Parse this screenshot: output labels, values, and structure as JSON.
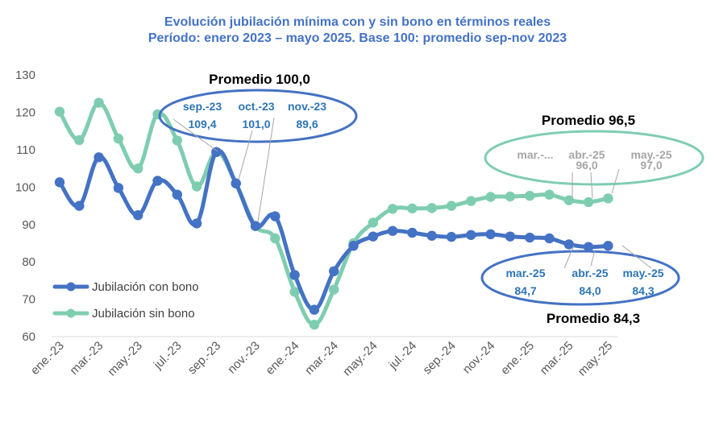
{
  "chart_data": {
    "type": "line",
    "title": "Evolución jubilación mínima con y sin bono en términos reales",
    "subtitle": "Período: enero 2023 – mayo 2025. Base 100: promedio sep-nov 2023",
    "x_tick_labels": [
      "ene.-23",
      "mar.-23",
      "may.-23",
      "jul.-23",
      "sep.-23",
      "nov.-23",
      "ene.-24",
      "mar.-24",
      "may.-24",
      "jul.-24",
      "sep.-24",
      "nov.-24",
      "ene.-25",
      "mar.-25",
      "may.-25"
    ],
    "months": [
      "ene.-23",
      "feb.-23",
      "mar.-23",
      "abr.-23",
      "may.-23",
      "jun.-23",
      "jul.-23",
      "ago.-23",
      "sep.-23",
      "oct.-23",
      "nov.-23",
      "dic.-23",
      "ene.-24",
      "feb.-24",
      "mar.-24",
      "abr.-24",
      "may.-24",
      "jun.-24",
      "jul.-24",
      "ago.-24",
      "sep.-24",
      "oct.-24",
      "nov.-24",
      "dic.-24",
      "ene.-25",
      "feb.-25",
      "mar.-25",
      "abr.-25",
      "may.-25"
    ],
    "ylim": [
      60,
      130
    ],
    "yticks": [
      60,
      70,
      80,
      90,
      100,
      110,
      120,
      130
    ],
    "grid": false,
    "legend_position": "bottom-left",
    "series": [
      {
        "name": "Jubilación con bono",
        "color": "#4472C4",
        "values": [
          101.3,
          95.0,
          108.0,
          99.8,
          92.5,
          101.7,
          98.0,
          90.3,
          109.4,
          101.0,
          89.6,
          92.2,
          76.5,
          67.2,
          77.5,
          84.3,
          86.8,
          88.3,
          87.8,
          87.0,
          86.7,
          87.2,
          87.4,
          86.8,
          86.5,
          86.3,
          84.7,
          84.0,
          84.3
        ]
      },
      {
        "name": "Jubilación sin bono",
        "color": "#7FCDB0",
        "values": [
          120.2,
          112.6,
          122.6,
          113.0,
          105.0,
          119.5,
          112.5,
          100.2,
          109.4,
          101.0,
          89.6,
          86.3,
          72.0,
          63.2,
          72.6,
          85.0,
          90.5,
          94.2,
          94.3,
          94.4,
          95.0,
          96.3,
          97.4,
          97.5,
          97.7,
          98.0,
          96.5,
          96.0,
          97.0
        ]
      }
    ],
    "annotations": {
      "promedio_top": "Promedio 100,0",
      "promedio_sin_bono": "Promedio 96,5",
      "promedio_con_bono": "Promedio 84,3",
      "oval_ref": {
        "color": "#4472C4",
        "labels": [
          {
            "month": "sep.-23",
            "value": "109,4"
          },
          {
            "month": "oct.-23",
            "value": "101,0"
          },
          {
            "month": "nov.-23",
            "value": "89,6"
          }
        ]
      },
      "oval_sin_bono": {
        "color": "#A6A6A6",
        "labels": [
          {
            "month": "mar.-...",
            "value": ""
          },
          {
            "month": "abr.-25",
            "value": "96,0"
          },
          {
            "month": "may.-25",
            "value": "97,0"
          }
        ]
      },
      "oval_con_bono": {
        "color": "#2E75B6",
        "labels": [
          {
            "month": "mar.-25",
            "value": "84,7"
          },
          {
            "month": "abr.-25",
            "value": "84,0"
          },
          {
            "month": "may.-25",
            "value": "84,3"
          }
        ]
      }
    }
  }
}
